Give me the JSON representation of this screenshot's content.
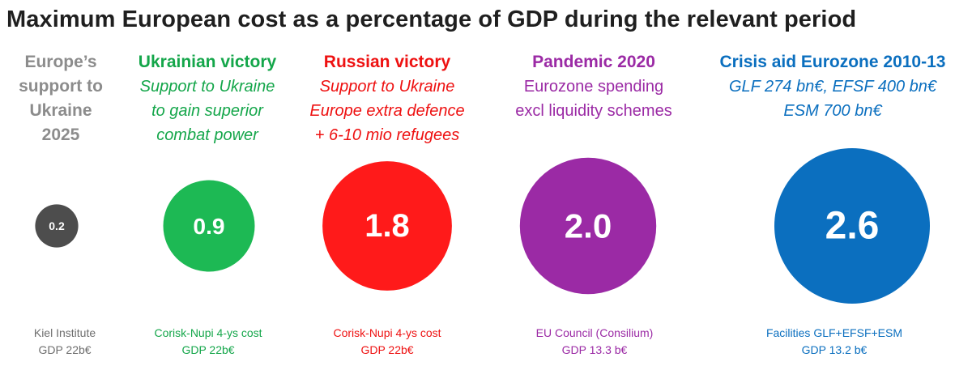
{
  "chart_data": {
    "type": "bubble",
    "title": "Maximum European cost as a percentage of GDP during the relevant period",
    "unit": "% of GDP",
    "items": [
      {
        "heading": "Europe’s\nsupport to\nUkraine\n2025",
        "description": "",
        "value": 0.2,
        "value_label": "0.2",
        "source_line1": "Kiel Institute",
        "source_line2": "GDP 22b€",
        "color": "#4d4d4d",
        "heading_color": "#8c8c8c",
        "desc_color": "#8c8c8c",
        "source_color": "#6e6e6e"
      },
      {
        "heading": "Ukrainian victory",
        "description": "Support to Ukraine\nto gain superior\ncombat power",
        "value": 0.9,
        "value_label": "0.9",
        "source_line1": "Corisk-Nupi 4-ys cost",
        "source_line2": "GDP 22b€",
        "color": "#1db954",
        "heading_color": "#14a64a",
        "desc_color": "#14a64a",
        "source_color": "#14a64a"
      },
      {
        "heading": "Russian victory",
        "description": "Support to Ukraine\nEurope extra defence\n+ 6-10 mio refugees",
        "value": 1.8,
        "value_label": "1.8",
        "source_line1": "Corisk-Nupi 4-ys cost",
        "source_line2": "GDP 22b€",
        "color": "#ff1a1a",
        "heading_color": "#ee1111",
        "desc_color": "#ee1111",
        "source_color": "#ee1111"
      },
      {
        "heading": "Pandemic 2020",
        "description": "Eurozone spending\nexcl liquidity schemes",
        "value": 2.0,
        "value_label": "2.0",
        "source_line1": "EU Council (Consilium)",
        "source_line2": "GDP 13.3 b€",
        "color": "#9b2aa5",
        "heading_color": "#9b2aa5",
        "desc_color": "#9b2aa5",
        "source_color": "#9b2aa5"
      },
      {
        "heading": "Crisis aid Eurozone 2010-13",
        "description": "GLF 274 bn€, EFSF 400 bn€\nESM 700 bn€",
        "value": 2.6,
        "value_label": "2.6",
        "source_line1": "Facilities GLF+EFSF+ESM",
        "source_line2": "GDP 13.2 b€",
        "color": "#0b6fbf",
        "heading_color": "#0b6fbf",
        "desc_color": "#0b6fbf",
        "source_color": "#0b6fbf"
      }
    ]
  }
}
